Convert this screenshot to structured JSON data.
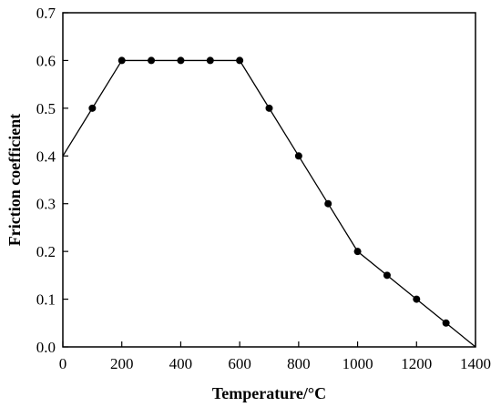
{
  "chart_data": {
    "type": "line",
    "title": "",
    "xlabel": "Temperature/°C",
    "ylabel": "Friction coefficient",
    "xlim": [
      0,
      1400
    ],
    "ylim": [
      0.0,
      0.7
    ],
    "xticks": [
      "0",
      "200",
      "400",
      "600",
      "800",
      "1000",
      "1200",
      "1400"
    ],
    "yticks": [
      "0.0",
      "0.1",
      "0.2",
      "0.3",
      "0.4",
      "0.5",
      "0.6",
      "0.7"
    ],
    "grid": false,
    "legend": "none",
    "series": [
      {
        "x": [
          0,
          100,
          200,
          300,
          400,
          500,
          600,
          700,
          800,
          900,
          1000,
          1100,
          1200,
          1300,
          1400
        ],
        "y": [
          0.4,
          0.5,
          0.6,
          0.6,
          0.6,
          0.6,
          0.6,
          0.5,
          0.4,
          0.3,
          0.2,
          0.15,
          0.1,
          0.05,
          0.0
        ],
        "markers": [
          false,
          true,
          true,
          true,
          true,
          true,
          true,
          true,
          true,
          true,
          true,
          true,
          true,
          true,
          false
        ],
        "color": "#000000"
      }
    ]
  }
}
